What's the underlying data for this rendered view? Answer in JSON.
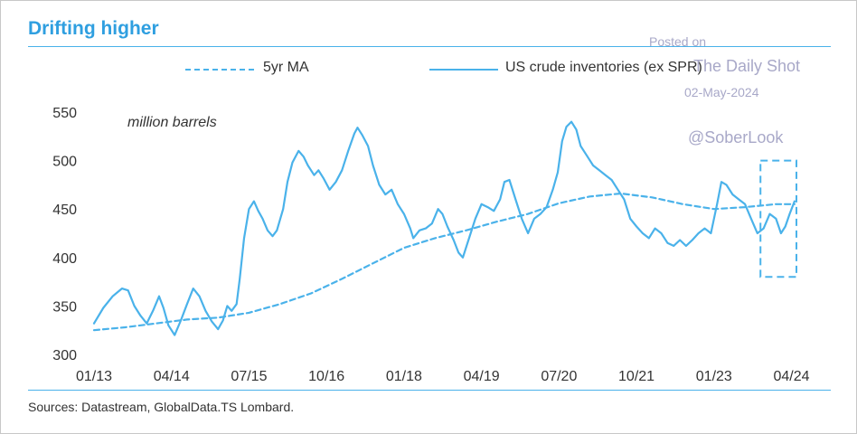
{
  "header": {
    "title": "Drifting higher"
  },
  "watermark": {
    "posted_on": "Posted on",
    "site": "The Daily Shot",
    "date": "02-May-2024",
    "handle": "@SoberLook"
  },
  "footer": {
    "source": "Sources: Datastream, GlobalData.TS Lombard."
  },
  "colors": {
    "accent": "#2f9fe0",
    "line": "#4ab2ea",
    "text": "#333333",
    "watermark": "#a8a8c8"
  },
  "chart_data": {
    "type": "line",
    "title": "Drifting higher",
    "ylabel": "million barrels",
    "xlabel": "",
    "ylim": [
      300,
      550
    ],
    "yticks": [
      300,
      350,
      400,
      450,
      500,
      550
    ],
    "xlim": [
      2013.0,
      2024.33
    ],
    "xticks": [
      {
        "label": "01/13",
        "x": 2013.0
      },
      {
        "label": "04/14",
        "x": 2014.25
      },
      {
        "label": "07/15",
        "x": 2015.5
      },
      {
        "label": "10/16",
        "x": 2016.75
      },
      {
        "label": "01/18",
        "x": 2018.0
      },
      {
        "label": "04/19",
        "x": 2019.25
      },
      {
        "label": "07/20",
        "x": 2020.5
      },
      {
        "label": "10/21",
        "x": 2021.75
      },
      {
        "label": "01/23",
        "x": 2023.0
      },
      {
        "label": "04/24",
        "x": 2024.25
      }
    ],
    "legend": {
      "position": "top",
      "entries": [
        "5yr MA",
        "US crude inventories (ex SPR)"
      ]
    },
    "series": [
      {
        "name": "US crude inventories (ex SPR)",
        "style": "solid",
        "points": [
          [
            2013.0,
            332
          ],
          [
            2013.15,
            348
          ],
          [
            2013.3,
            360
          ],
          [
            2013.45,
            368
          ],
          [
            2013.55,
            366
          ],
          [
            2013.65,
            350
          ],
          [
            2013.75,
            340
          ],
          [
            2013.85,
            332
          ],
          [
            2013.95,
            345
          ],
          [
            2014.05,
            360
          ],
          [
            2014.12,
            348
          ],
          [
            2014.2,
            330
          ],
          [
            2014.3,
            320
          ],
          [
            2014.4,
            335
          ],
          [
            2014.5,
            352
          ],
          [
            2014.6,
            368
          ],
          [
            2014.7,
            360
          ],
          [
            2014.8,
            345
          ],
          [
            2014.9,
            334
          ],
          [
            2015.0,
            326
          ],
          [
            2015.08,
            335
          ],
          [
            2015.15,
            350
          ],
          [
            2015.22,
            345
          ],
          [
            2015.3,
            352
          ],
          [
            2015.35,
            378
          ],
          [
            2015.42,
            420
          ],
          [
            2015.5,
            450
          ],
          [
            2015.58,
            458
          ],
          [
            2015.65,
            448
          ],
          [
            2015.72,
            440
          ],
          [
            2015.8,
            428
          ],
          [
            2015.88,
            422
          ],
          [
            2015.95,
            428
          ],
          [
            2016.05,
            450
          ],
          [
            2016.12,
            478
          ],
          [
            2016.2,
            498
          ],
          [
            2016.3,
            510
          ],
          [
            2016.38,
            504
          ],
          [
            2016.45,
            495
          ],
          [
            2016.55,
            485
          ],
          [
            2016.62,
            490
          ],
          [
            2016.7,
            482
          ],
          [
            2016.8,
            470
          ],
          [
            2016.9,
            478
          ],
          [
            2017.0,
            490
          ],
          [
            2017.1,
            510
          ],
          [
            2017.2,
            528
          ],
          [
            2017.25,
            534
          ],
          [
            2017.33,
            526
          ],
          [
            2017.42,
            515
          ],
          [
            2017.5,
            495
          ],
          [
            2017.6,
            475
          ],
          [
            2017.7,
            465
          ],
          [
            2017.8,
            470
          ],
          [
            2017.9,
            455
          ],
          [
            2018.0,
            445
          ],
          [
            2018.1,
            430
          ],
          [
            2018.15,
            420
          ],
          [
            2018.25,
            428
          ],
          [
            2018.35,
            430
          ],
          [
            2018.45,
            435
          ],
          [
            2018.55,
            450
          ],
          [
            2018.62,
            445
          ],
          [
            2018.7,
            432
          ],
          [
            2018.8,
            418
          ],
          [
            2018.88,
            405
          ],
          [
            2018.95,
            400
          ],
          [
            2019.05,
            420
          ],
          [
            2019.15,
            440
          ],
          [
            2019.25,
            455
          ],
          [
            2019.35,
            452
          ],
          [
            2019.45,
            448
          ],
          [
            2019.55,
            460
          ],
          [
            2019.62,
            478
          ],
          [
            2019.7,
            480
          ],
          [
            2019.8,
            460
          ],
          [
            2019.9,
            440
          ],
          [
            2020.0,
            425
          ],
          [
            2020.1,
            440
          ],
          [
            2020.2,
            445
          ],
          [
            2020.3,
            452
          ],
          [
            2020.4,
            470
          ],
          [
            2020.48,
            488
          ],
          [
            2020.55,
            520
          ],
          [
            2020.62,
            535
          ],
          [
            2020.7,
            540
          ],
          [
            2020.78,
            532
          ],
          [
            2020.85,
            515
          ],
          [
            2020.95,
            505
          ],
          [
            2021.05,
            495
          ],
          [
            2021.15,
            490
          ],
          [
            2021.25,
            485
          ],
          [
            2021.35,
            480
          ],
          [
            2021.45,
            470
          ],
          [
            2021.55,
            460
          ],
          [
            2021.65,
            440
          ],
          [
            2021.75,
            432
          ],
          [
            2021.85,
            425
          ],
          [
            2021.95,
            420
          ],
          [
            2022.05,
            430
          ],
          [
            2022.15,
            425
          ],
          [
            2022.25,
            415
          ],
          [
            2022.35,
            412
          ],
          [
            2022.45,
            418
          ],
          [
            2022.55,
            412
          ],
          [
            2022.65,
            418
          ],
          [
            2022.75,
            425
          ],
          [
            2022.85,
            430
          ],
          [
            2022.95,
            425
          ],
          [
            2023.05,
            455
          ],
          [
            2023.12,
            478
          ],
          [
            2023.2,
            475
          ],
          [
            2023.3,
            465
          ],
          [
            2023.4,
            460
          ],
          [
            2023.5,
            455
          ],
          [
            2023.6,
            440
          ],
          [
            2023.7,
            425
          ],
          [
            2023.8,
            430
          ],
          [
            2023.9,
            445
          ],
          [
            2024.0,
            440
          ],
          [
            2024.08,
            425
          ],
          [
            2024.15,
            432
          ],
          [
            2024.22,
            445
          ],
          [
            2024.3,
            458
          ]
        ]
      },
      {
        "name": "5yr MA",
        "style": "dashed",
        "points": [
          [
            2013.0,
            325
          ],
          [
            2013.5,
            328
          ],
          [
            2014.0,
            332
          ],
          [
            2014.5,
            336
          ],
          [
            2015.0,
            338
          ],
          [
            2015.5,
            343
          ],
          [
            2016.0,
            352
          ],
          [
            2016.5,
            363
          ],
          [
            2017.0,
            378
          ],
          [
            2017.5,
            394
          ],
          [
            2018.0,
            410
          ],
          [
            2018.5,
            420
          ],
          [
            2019.0,
            428
          ],
          [
            2019.5,
            437
          ],
          [
            2020.0,
            445
          ],
          [
            2020.5,
            456
          ],
          [
            2021.0,
            463
          ],
          [
            2021.5,
            466
          ],
          [
            2022.0,
            462
          ],
          [
            2022.5,
            455
          ],
          [
            2023.0,
            450
          ],
          [
            2023.5,
            452
          ],
          [
            2024.0,
            455
          ],
          [
            2024.3,
            455
          ]
        ]
      }
    ],
    "annotations": [
      {
        "type": "dashed-box",
        "label": "",
        "x_range": [
          2023.75,
          2024.33
        ],
        "y_range": [
          380,
          500
        ]
      }
    ]
  }
}
